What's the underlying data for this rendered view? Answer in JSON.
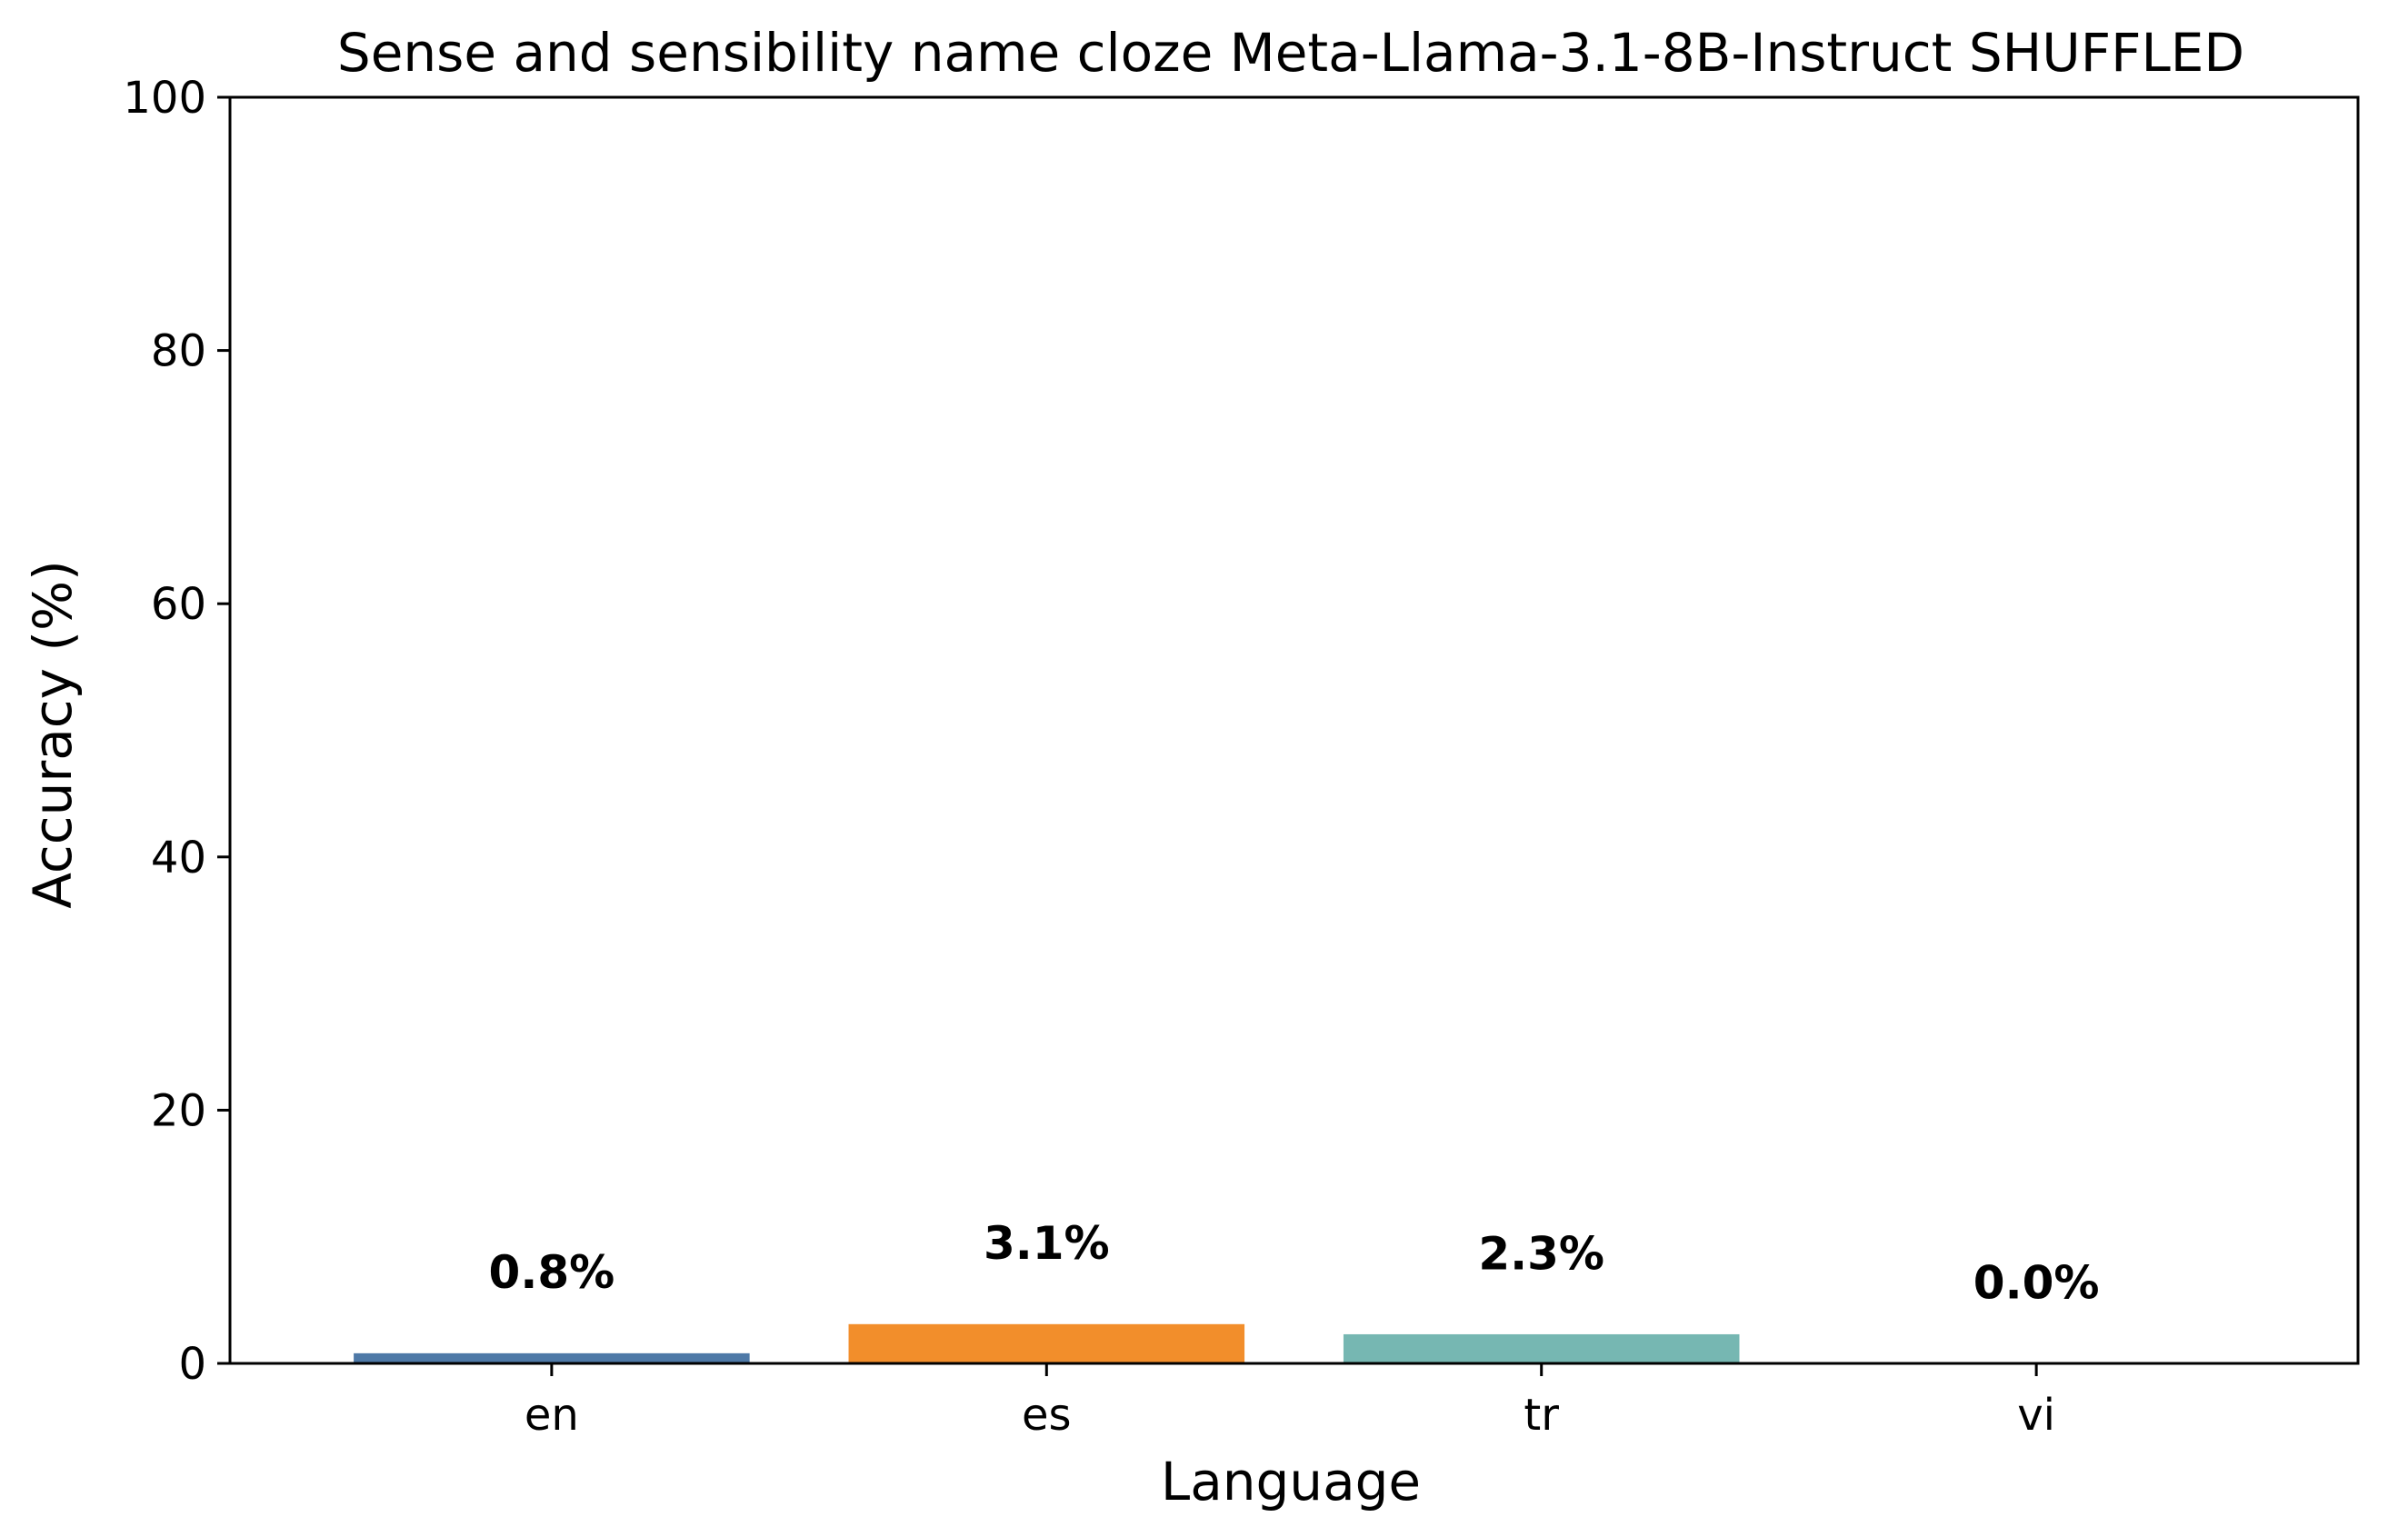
{
  "chart_data": {
    "type": "bar",
    "title": "Sense and sensibility name cloze Meta-Llama-3.1-8B-Instruct SHUFFLED",
    "xlabel": "Language",
    "ylabel": "Accuracy (%)",
    "categories": [
      "en",
      "es",
      "tr",
      "vi"
    ],
    "values": [
      0.8,
      3.1,
      2.3,
      0.0
    ],
    "value_labels": [
      "0.8%",
      "3.1%",
      "2.3%",
      "0.0%"
    ],
    "colors": [
      "#4e79a7",
      "#f28e2b",
      "#76b7b2",
      "#e15759"
    ],
    "ylim": [
      0,
      100
    ],
    "yticks": [
      0,
      20,
      40,
      60,
      80,
      100
    ],
    "ytick_labels": [
      "0",
      "20",
      "40",
      "60",
      "80",
      "100"
    ],
    "grid": false,
    "legend": "none"
  }
}
